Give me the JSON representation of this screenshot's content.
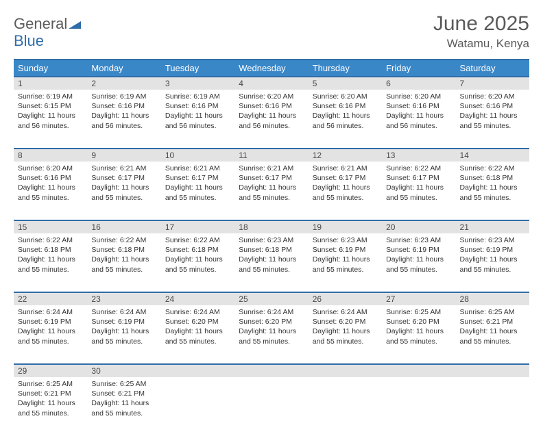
{
  "logo": {
    "main": "General",
    "accent": "Blue"
  },
  "title": "June 2025",
  "location": "Watamu, Kenya",
  "colors": {
    "header_bg": "#3a87c8",
    "header_border": "#2f6da8",
    "daynum_bg": "#e3e3e3",
    "text": "#333333",
    "logo_gray": "#5a5a5a",
    "logo_blue": "#2f6da8"
  },
  "weekdays": [
    "Sunday",
    "Monday",
    "Tuesday",
    "Wednesday",
    "Thursday",
    "Friday",
    "Saturday"
  ],
  "weeks": [
    [
      {
        "n": "1",
        "sr": "6:19 AM",
        "ss": "6:15 PM",
        "dl": "11 hours and 56 minutes."
      },
      {
        "n": "2",
        "sr": "6:19 AM",
        "ss": "6:16 PM",
        "dl": "11 hours and 56 minutes."
      },
      {
        "n": "3",
        "sr": "6:19 AM",
        "ss": "6:16 PM",
        "dl": "11 hours and 56 minutes."
      },
      {
        "n": "4",
        "sr": "6:20 AM",
        "ss": "6:16 PM",
        "dl": "11 hours and 56 minutes."
      },
      {
        "n": "5",
        "sr": "6:20 AM",
        "ss": "6:16 PM",
        "dl": "11 hours and 56 minutes."
      },
      {
        "n": "6",
        "sr": "6:20 AM",
        "ss": "6:16 PM",
        "dl": "11 hours and 56 minutes."
      },
      {
        "n": "7",
        "sr": "6:20 AM",
        "ss": "6:16 PM",
        "dl": "11 hours and 55 minutes."
      }
    ],
    [
      {
        "n": "8",
        "sr": "6:20 AM",
        "ss": "6:16 PM",
        "dl": "11 hours and 55 minutes."
      },
      {
        "n": "9",
        "sr": "6:21 AM",
        "ss": "6:17 PM",
        "dl": "11 hours and 55 minutes."
      },
      {
        "n": "10",
        "sr": "6:21 AM",
        "ss": "6:17 PM",
        "dl": "11 hours and 55 minutes."
      },
      {
        "n": "11",
        "sr": "6:21 AM",
        "ss": "6:17 PM",
        "dl": "11 hours and 55 minutes."
      },
      {
        "n": "12",
        "sr": "6:21 AM",
        "ss": "6:17 PM",
        "dl": "11 hours and 55 minutes."
      },
      {
        "n": "13",
        "sr": "6:22 AM",
        "ss": "6:17 PM",
        "dl": "11 hours and 55 minutes."
      },
      {
        "n": "14",
        "sr": "6:22 AM",
        "ss": "6:18 PM",
        "dl": "11 hours and 55 minutes."
      }
    ],
    [
      {
        "n": "15",
        "sr": "6:22 AM",
        "ss": "6:18 PM",
        "dl": "11 hours and 55 minutes."
      },
      {
        "n": "16",
        "sr": "6:22 AM",
        "ss": "6:18 PM",
        "dl": "11 hours and 55 minutes."
      },
      {
        "n": "17",
        "sr": "6:22 AM",
        "ss": "6:18 PM",
        "dl": "11 hours and 55 minutes."
      },
      {
        "n": "18",
        "sr": "6:23 AM",
        "ss": "6:18 PM",
        "dl": "11 hours and 55 minutes."
      },
      {
        "n": "19",
        "sr": "6:23 AM",
        "ss": "6:19 PM",
        "dl": "11 hours and 55 minutes."
      },
      {
        "n": "20",
        "sr": "6:23 AM",
        "ss": "6:19 PM",
        "dl": "11 hours and 55 minutes."
      },
      {
        "n": "21",
        "sr": "6:23 AM",
        "ss": "6:19 PM",
        "dl": "11 hours and 55 minutes."
      }
    ],
    [
      {
        "n": "22",
        "sr": "6:24 AM",
        "ss": "6:19 PM",
        "dl": "11 hours and 55 minutes."
      },
      {
        "n": "23",
        "sr": "6:24 AM",
        "ss": "6:19 PM",
        "dl": "11 hours and 55 minutes."
      },
      {
        "n": "24",
        "sr": "6:24 AM",
        "ss": "6:20 PM",
        "dl": "11 hours and 55 minutes."
      },
      {
        "n": "25",
        "sr": "6:24 AM",
        "ss": "6:20 PM",
        "dl": "11 hours and 55 minutes."
      },
      {
        "n": "26",
        "sr": "6:24 AM",
        "ss": "6:20 PM",
        "dl": "11 hours and 55 minutes."
      },
      {
        "n": "27",
        "sr": "6:25 AM",
        "ss": "6:20 PM",
        "dl": "11 hours and 55 minutes."
      },
      {
        "n": "28",
        "sr": "6:25 AM",
        "ss": "6:21 PM",
        "dl": "11 hours and 55 minutes."
      }
    ],
    [
      {
        "n": "29",
        "sr": "6:25 AM",
        "ss": "6:21 PM",
        "dl": "11 hours and 55 minutes."
      },
      {
        "n": "30",
        "sr": "6:25 AM",
        "ss": "6:21 PM",
        "dl": "11 hours and 55 minutes."
      },
      null,
      null,
      null,
      null,
      null
    ]
  ],
  "labels": {
    "sunrise": "Sunrise:",
    "sunset": "Sunset:",
    "daylight": "Daylight:"
  }
}
